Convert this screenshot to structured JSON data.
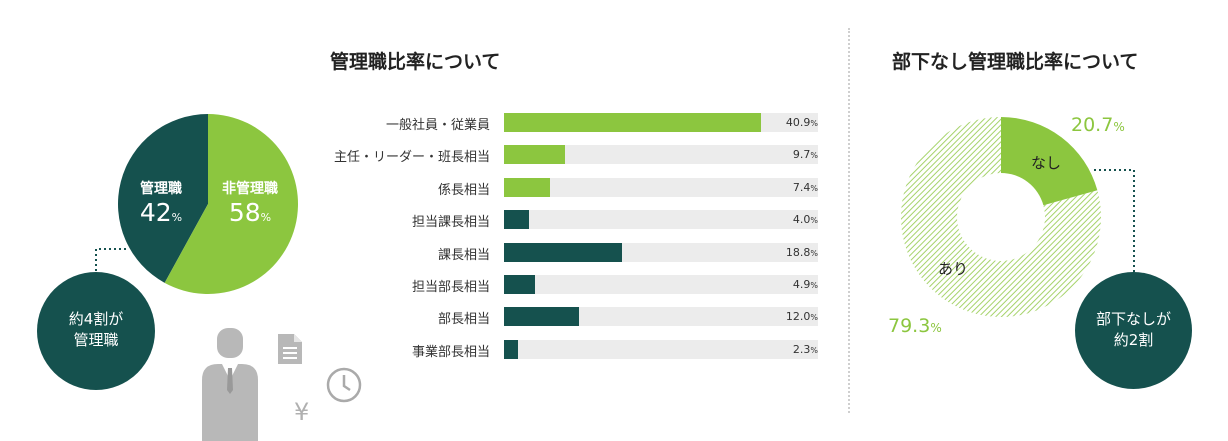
{
  "colors": {
    "dark": "#15514e",
    "green": "#8cc63f",
    "track": "#ececec",
    "line": "#15514e"
  },
  "left": {
    "title": "管理職比率について",
    "pie": {
      "slices": [
        {
          "label": "管理職",
          "value": "42",
          "unit": "%",
          "fraction": 0.42
        },
        {
          "label": "非管理職",
          "value": "58",
          "unit": "%",
          "fraction": 0.58
        }
      ]
    },
    "callout": {
      "line1": "約4割が",
      "line2": "管理職"
    },
    "icons": [
      "businessman-icon",
      "document-icon",
      "clock-icon",
      "yen-icon"
    ],
    "yen_glyph": "¥"
  },
  "right": {
    "title": "部下なし管理職比率について",
    "donut": {
      "none": {
        "label": "なし",
        "value": "20.7",
        "unit": "%",
        "fraction": 0.207
      },
      "some": {
        "label": "あり",
        "value": "79.3",
        "unit": "%",
        "fraction": 0.793
      }
    },
    "callout": {
      "line1": "部下なしが",
      "line2": "約2割"
    }
  },
  "chart_data": [
    {
      "type": "pie",
      "title": "管理職比率について",
      "categories": [
        "管理職",
        "非管理職"
      ],
      "values": [
        42,
        58
      ]
    },
    {
      "type": "bar",
      "orientation": "horizontal",
      "categories": [
        "一般社員・従業員",
        "主任・リーダー・班長相当",
        "係長相当",
        "担当課長相当",
        "課長相当",
        "担当部長相当",
        "部長相当",
        "事業部長相当"
      ],
      "values": [
        40.9,
        9.7,
        7.4,
        4.0,
        18.8,
        4.9,
        12.0,
        2.3
      ],
      "value_labels": [
        "40.9",
        "9.7",
        "7.4",
        "4.0",
        "18.8",
        "4.9",
        "12.0",
        "2.3"
      ],
      "unit": "%",
      "bar_colors": [
        "green",
        "green",
        "green",
        "dark",
        "dark",
        "dark",
        "dark",
        "dark"
      ],
      "xlim": [
        0,
        50
      ]
    },
    {
      "type": "pie",
      "title": "部下なし管理職比率について",
      "categories": [
        "なし",
        "あり"
      ],
      "values": [
        20.7,
        79.3
      ]
    }
  ]
}
